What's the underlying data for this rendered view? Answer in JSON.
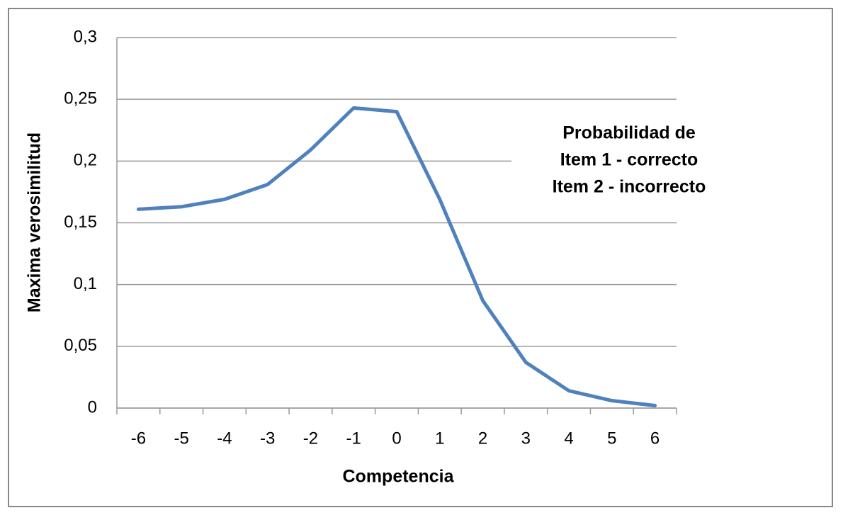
{
  "chart_data": {
    "type": "line",
    "y_label": "Maxima verosimilitud",
    "x_label": "Competencia",
    "annotation": [
      "Probabilidad de",
      "Item 1 - correcto",
      "Item 2 - incorrecto"
    ],
    "categories": [
      "-6",
      "-5",
      "-4",
      "-3",
      "-2",
      "-1",
      "0",
      "1",
      "2",
      "3",
      "4",
      "5",
      "6"
    ],
    "values": [
      0.161,
      0.163,
      0.169,
      0.181,
      0.209,
      0.243,
      0.24,
      0.169,
      0.087,
      0.037,
      0.014,
      0.006,
      0.002
    ],
    "color": "#4f81bd",
    "ylim": [
      0,
      0.3
    ],
    "yticks": [
      0,
      {
        "value": 0.05,
        "label": "0,05"
      },
      {
        "value": 0.1,
        "label": "0,1"
      },
      {
        "value": 0.15,
        "label": "0,15"
      },
      {
        "value": 0.2,
        "label": "0,2"
      },
      {
        "value": 0.25,
        "label": "0,25"
      },
      {
        "value": 0.3,
        "label": "0,3"
      }
    ],
    "grid": true
  }
}
